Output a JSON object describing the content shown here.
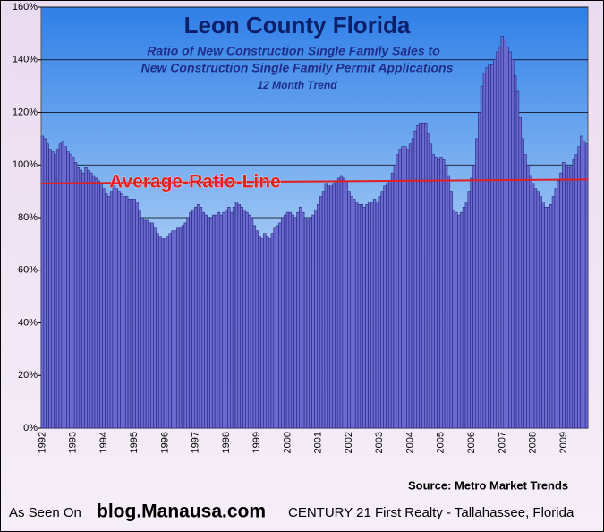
{
  "chart_data": {
    "type": "bar",
    "title": "Leon County Florida",
    "subtitle_lines": [
      "Ratio of New Construction  Single Family Sales to",
      "New Construction Single Family Permit Applications",
      "12 Month Trend"
    ],
    "source": "Source: Metro Market Trends",
    "footer": {
      "prefix": "As Seen On",
      "site": "blog.Manausa.com",
      "company": "CENTURY 21 First Realty - Tallahassee,  Florida"
    },
    "average_line": {
      "label": "Average-Ratio-Line",
      "values": [
        93,
        94.5
      ],
      "color": "#e02020"
    },
    "color": "#6a6ad0",
    "edge_color": "#1a1a70",
    "grid": true,
    "ylim": [
      0,
      160
    ],
    "yticks": [
      {
        "value": 0,
        "label": "0%"
      },
      {
        "value": 20,
        "label": "20%"
      },
      {
        "value": 40,
        "label": "40%"
      },
      {
        "value": 60,
        "label": "60%"
      },
      {
        "value": 80,
        "label": "80%"
      },
      {
        "value": 100,
        "label": "100%"
      },
      {
        "value": 120,
        "label": "120%"
      },
      {
        "value": 140,
        "label": "140%"
      },
      {
        "value": 160,
        "label": "160%"
      }
    ],
    "categories": [
      "1992",
      null,
      null,
      null,
      null,
      null,
      null,
      null,
      null,
      null,
      null,
      null,
      "1993",
      null,
      null,
      null,
      null,
      null,
      null,
      null,
      null,
      null,
      null,
      null,
      "1994",
      null,
      null,
      null,
      null,
      null,
      null,
      null,
      null,
      null,
      null,
      null,
      "1995",
      null,
      null,
      null,
      null,
      null,
      null,
      null,
      null,
      null,
      null,
      null,
      "1996",
      null,
      null,
      null,
      null,
      null,
      null,
      null,
      null,
      null,
      null,
      null,
      "1997",
      null,
      null,
      null,
      null,
      null,
      null,
      null,
      null,
      null,
      null,
      null,
      "1998",
      null,
      null,
      null,
      null,
      null,
      null,
      null,
      null,
      null,
      null,
      null,
      "1999",
      null,
      null,
      null,
      null,
      null,
      null,
      null,
      null,
      null,
      null,
      null,
      "2000",
      null,
      null,
      null,
      null,
      null,
      null,
      null,
      null,
      null,
      null,
      null,
      "2001",
      null,
      null,
      null,
      null,
      null,
      null,
      null,
      null,
      null,
      null,
      null,
      "2002",
      null,
      null,
      null,
      null,
      null,
      null,
      null,
      null,
      null,
      null,
      null,
      "2003",
      null,
      null,
      null,
      null,
      null,
      null,
      null,
      null,
      null,
      null,
      null,
      "2004",
      null,
      null,
      null,
      null,
      null,
      null,
      null,
      null,
      null,
      null,
      null,
      "2005",
      null,
      null,
      null,
      null,
      null,
      null,
      null,
      null,
      null,
      null,
      null,
      "2006",
      null,
      null,
      null,
      null,
      null,
      null,
      null,
      null,
      null,
      null,
      null,
      "2007",
      null,
      null,
      null,
      null,
      null,
      null,
      null,
      null,
      null,
      null,
      null,
      "2008",
      null,
      null,
      null,
      null,
      null,
      null,
      null,
      null,
      null,
      null,
      null,
      "2009",
      null,
      null,
      null,
      null,
      null,
      null,
      null,
      null,
      null
    ],
    "values": [
      111,
      110,
      108,
      106,
      105,
      104,
      106,
      108,
      109,
      107,
      105,
      104,
      103,
      101,
      99,
      98,
      97,
      99,
      98,
      97,
      96,
      95,
      94,
      93,
      91,
      89,
      88,
      90,
      92,
      91,
      90,
      89,
      88,
      88,
      87,
      87,
      87,
      86,
      83,
      80,
      79,
      79,
      78,
      78,
      76,
      74,
      73,
      72,
      72,
      73,
      74,
      75,
      75,
      76,
      76,
      77,
      78,
      80,
      82,
      83,
      84,
      85,
      84,
      82,
      81,
      80,
      80,
      81,
      81,
      82,
      81,
      82,
      83,
      84,
      82,
      84,
      86,
      85,
      84,
      83,
      82,
      81,
      80,
      77,
      75,
      73,
      72,
      74,
      73,
      72,
      74,
      76,
      77,
      78,
      80,
      81,
      82,
      82,
      81,
      80,
      82,
      84,
      82,
      80,
      79,
      80,
      81,
      83,
      85,
      88,
      90,
      93,
      92,
      92,
      93,
      94,
      95,
      96,
      95,
      94,
      90,
      88,
      87,
      86,
      85,
      85,
      84,
      85,
      86,
      86,
      87,
      86,
      88,
      90,
      92,
      93,
      94,
      97,
      100,
      104,
      106,
      107,
      107,
      106,
      108,
      110,
      113,
      115,
      116,
      116,
      116,
      112,
      108,
      104,
      103,
      102,
      103,
      102,
      100,
      96,
      90,
      83,
      82,
      81,
      82,
      84,
      86,
      90,
      95,
      100,
      110,
      120,
      130,
      135,
      137,
      138,
      138,
      140,
      143,
      145,
      149,
      148,
      145,
      143,
      140,
      134,
      128,
      118,
      110,
      104,
      100,
      96,
      93,
      91,
      90,
      88,
      86,
      84,
      84,
      85,
      88,
      91,
      94,
      97,
      101,
      100,
      99,
      100,
      102,
      104,
      107,
      111,
      109,
      108
    ]
  }
}
